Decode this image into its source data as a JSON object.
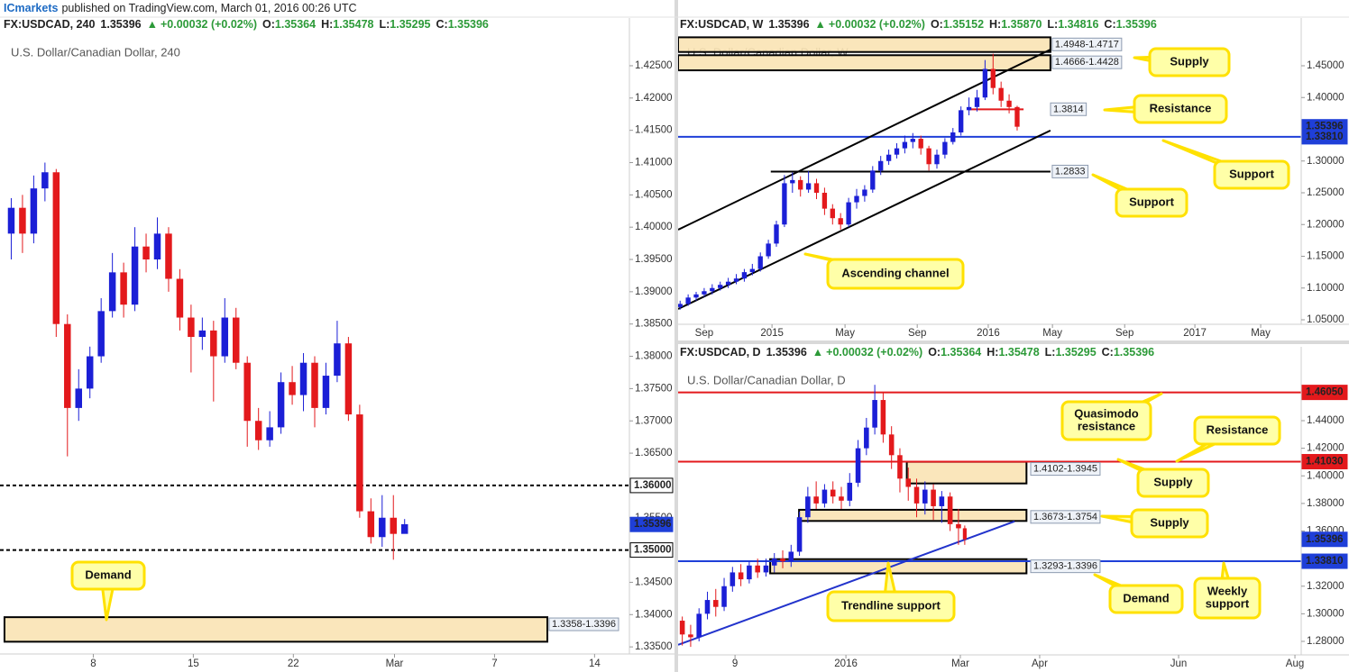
{
  "page": {
    "publisher": "ICmarkets",
    "note": "published on TradingView.com, March 01, 2016 00:26 UTC"
  },
  "chart_data": [
    {
      "type": "candlestick",
      "title": "U.S. Dollar/Canadian Dollar, 240",
      "header": {
        "symbol": "FX:USDCAD, 240",
        "last": "1.35396",
        "arrow": "▲",
        "change": "+0.00032 (+0.02%)",
        "ohlc": [
          {
            "label": "O:",
            "value": "1.35364"
          },
          {
            "label": "H:",
            "value": "1.35478"
          },
          {
            "label": "L:",
            "value": "1.35295"
          },
          {
            "label": "C:",
            "value": "1.35396"
          }
        ]
      },
      "up_color": "#1b1fd6",
      "down_color": "#e3191c",
      "xlim": [
        0,
        56
      ],
      "ylim": [
        1.3339,
        1.4296
      ],
      "xticks": [
        {
          "value": 8.3,
          "label": "8"
        },
        {
          "value": 17.2,
          "label": "15"
        },
        {
          "value": 26.1,
          "label": "22"
        },
        {
          "value": 35.1,
          "label": "Mar"
        },
        {
          "value": 44,
          "label": "7"
        },
        {
          "value": 52.9,
          "label": "14"
        }
      ],
      "yticks": [
        {
          "value": 1.335,
          "label": "1.33500"
        },
        {
          "value": 1.34,
          "label": "1.34000"
        },
        {
          "value": 1.345,
          "label": "1.34500"
        },
        {
          "value": 1.355,
          "label": "1.35500"
        },
        {
          "value": 1.365,
          "label": "1.36500"
        },
        {
          "value": 1.37,
          "label": "1.37000"
        },
        {
          "value": 1.375,
          "label": "1.37500"
        },
        {
          "value": 1.38,
          "label": "1.38000"
        },
        {
          "value": 1.385,
          "label": "1.38500"
        },
        {
          "value": 1.39,
          "label": "1.39000"
        },
        {
          "value": 1.395,
          "label": "1.39500"
        },
        {
          "value": 1.4,
          "label": "1.40000"
        },
        {
          "value": 1.405,
          "label": "1.40500"
        },
        {
          "value": 1.41,
          "label": "1.41000"
        },
        {
          "value": 1.415,
          "label": "1.41500"
        },
        {
          "value": 1.42,
          "label": "1.42000"
        },
        {
          "value": 1.425,
          "label": "1.42500"
        }
      ],
      "x": [
        1,
        2,
        3,
        4,
        5,
        6,
        7,
        8,
        9,
        10,
        11,
        12,
        13,
        14,
        15,
        16,
        17,
        18,
        19,
        20,
        21,
        22,
        23,
        24,
        25,
        26,
        27,
        28,
        29,
        30,
        31,
        32,
        33,
        34,
        35,
        36
      ],
      "open": [
        1.399,
        1.403,
        1.399,
        1.406,
        1.4085,
        1.385,
        1.372,
        1.375,
        1.38,
        1.387,
        1.393,
        1.388,
        1.397,
        1.395,
        1.399,
        1.392,
        1.386,
        1.383,
        1.384,
        1.38,
        1.386,
        1.379,
        1.37,
        1.367,
        1.369,
        1.376,
        1.374,
        1.379,
        1.372,
        1.377,
        1.382,
        1.371,
        1.356,
        1.352,
        1.355,
        1.3525
      ],
      "high": [
        1.4045,
        1.405,
        1.408,
        1.41,
        1.409,
        1.3865,
        1.378,
        1.3815,
        1.389,
        1.396,
        1.3945,
        1.4,
        1.399,
        1.4015,
        1.4,
        1.3935,
        1.388,
        1.386,
        1.3855,
        1.389,
        1.3875,
        1.38,
        1.372,
        1.3715,
        1.3775,
        1.3785,
        1.3805,
        1.38,
        1.379,
        1.3855,
        1.383,
        1.3725,
        1.358,
        1.3585,
        1.3585,
        1.3548
      ],
      "low": [
        1.395,
        1.396,
        1.3975,
        1.404,
        1.383,
        1.3645,
        1.37,
        1.3735,
        1.379,
        1.386,
        1.386,
        1.387,
        1.393,
        1.3935,
        1.39,
        1.384,
        1.3775,
        1.381,
        1.373,
        1.379,
        1.378,
        1.366,
        1.3655,
        1.366,
        1.368,
        1.3725,
        1.3715,
        1.369,
        1.371,
        1.376,
        1.37,
        1.355,
        1.351,
        1.3505,
        1.3485,
        1.353
      ],
      "close": [
        1.403,
        1.399,
        1.406,
        1.4085,
        1.385,
        1.372,
        1.375,
        1.38,
        1.387,
        1.393,
        1.388,
        1.397,
        1.395,
        1.399,
        1.392,
        1.386,
        1.383,
        1.384,
        1.38,
        1.386,
        1.379,
        1.37,
        1.367,
        1.369,
        1.376,
        1.374,
        1.379,
        1.372,
        1.377,
        1.382,
        1.371,
        1.356,
        1.352,
        1.355,
        1.3525,
        1.354
      ],
      "levels": [
        {
          "value": 1.36,
          "label": "1.36000",
          "color": "#000000",
          "style": "dashed"
        },
        {
          "value": 1.35,
          "label": "1.35000",
          "color": "#000000",
          "style": "dashed"
        },
        {
          "value": 1.35396,
          "label": "1.35396",
          "color": "#1f3fd8",
          "style": "none"
        }
      ],
      "zones": [
        {
          "low": 1.3358,
          "high": 1.3396,
          "from": 0.4,
          "to": 48.7,
          "label": "1.3358-1.3396"
        }
      ],
      "segments": [],
      "callouts": [
        {
          "lines": [
            "Demand"
          ]
        }
      ]
    },
    {
      "type": "candlestick",
      "title": "U.S. Dollar/Canadian Dollar, W",
      "header": {
        "symbol": "FX:USDCAD, W",
        "last": "1.35396",
        "arrow": "▲",
        "change": "+0.00032 (+0.02%)",
        "ohlc": [
          {
            "label": "O:",
            "value": "1.35152"
          },
          {
            "label": "H:",
            "value": "1.35870"
          },
          {
            "label": "L:",
            "value": "1.34816"
          },
          {
            "label": "C:",
            "value": "1.35396"
          }
        ]
      },
      "up_color": "#1b1fd6",
      "down_color": "#e3191c",
      "xlim": [
        -0.5,
        154.8
      ],
      "ylim": [
        1.0429,
        1.4968
      ],
      "xticks": [
        {
          "value": 6,
          "label": "Sep"
        },
        {
          "value": 22.9,
          "label": "2015"
        },
        {
          "value": 41.1,
          "label": "May"
        },
        {
          "value": 59.1,
          "label": "Sep"
        },
        {
          "value": 76.8,
          "label": "2016"
        },
        {
          "value": 92.8,
          "label": "May"
        },
        {
          "value": 110.8,
          "label": "Sep"
        },
        {
          "value": 128.3,
          "label": "2017"
        },
        {
          "value": 144.7,
          "label": "May"
        }
      ],
      "yticks": [
        {
          "value": 1.05,
          "label": "1.05000"
        },
        {
          "value": 1.1,
          "label": "1.10000"
        },
        {
          "value": 1.15,
          "label": "1.15000"
        },
        {
          "value": 1.2,
          "label": "1.20000"
        },
        {
          "value": 1.25,
          "label": "1.25000"
        },
        {
          "value": 1.3,
          "label": "1.30000"
        },
        {
          "value": 1.4,
          "label": "1.40000"
        },
        {
          "value": 1.45,
          "label": "1.45000"
        }
      ],
      "x": [
        0,
        2,
        4,
        6,
        8,
        10,
        12,
        14,
        16,
        18,
        20,
        22,
        24,
        26,
        28,
        30,
        32,
        34,
        36,
        38,
        40,
        42,
        44,
        46,
        48,
        50,
        52,
        54,
        56,
        58,
        60,
        62,
        64,
        66,
        68,
        70,
        72,
        74,
        76,
        78,
        80,
        82,
        84
      ],
      "open": [
        1.07,
        1.075,
        1.085,
        1.09,
        1.095,
        1.1,
        1.105,
        1.11,
        1.115,
        1.125,
        1.13,
        1.15,
        1.17,
        1.2,
        1.265,
        1.27,
        1.255,
        1.265,
        1.25,
        1.225,
        1.21,
        1.2,
        1.235,
        1.245,
        1.255,
        1.285,
        1.3,
        1.31,
        1.32,
        1.33,
        1.335,
        1.32,
        1.295,
        1.31,
        1.33,
        1.345,
        1.38,
        1.385,
        1.4,
        1.445,
        1.415,
        1.395,
        1.385
      ],
      "high": [
        1.08,
        1.09,
        1.094,
        1.1,
        1.106,
        1.11,
        1.116,
        1.122,
        1.13,
        1.138,
        1.156,
        1.176,
        1.206,
        1.278,
        1.282,
        1.276,
        1.284,
        1.272,
        1.258,
        1.232,
        1.218,
        1.242,
        1.256,
        1.262,
        1.292,
        1.308,
        1.318,
        1.328,
        1.34,
        1.344,
        1.34,
        1.324,
        1.318,
        1.336,
        1.352,
        1.386,
        1.4,
        1.412,
        1.459,
        1.469,
        1.425,
        1.405,
        1.387
      ],
      "low": [
        1.066,
        1.072,
        1.08,
        1.086,
        1.09,
        1.096,
        1.1,
        1.106,
        1.11,
        1.12,
        1.126,
        1.146,
        1.165,
        1.196,
        1.25,
        1.244,
        1.25,
        1.24,
        1.215,
        1.2,
        1.192,
        1.196,
        1.225,
        1.236,
        1.25,
        1.278,
        1.294,
        1.304,
        1.312,
        1.32,
        1.31,
        1.285,
        1.288,
        1.304,
        1.326,
        1.34,
        1.372,
        1.378,
        1.396,
        1.405,
        1.385,
        1.375,
        1.348
      ],
      "close": [
        1.075,
        1.085,
        1.09,
        1.095,
        1.1,
        1.105,
        1.11,
        1.115,
        1.125,
        1.13,
        1.15,
        1.17,
        1.2,
        1.265,
        1.27,
        1.255,
        1.265,
        1.25,
        1.225,
        1.21,
        1.2,
        1.235,
        1.245,
        1.255,
        1.285,
        1.3,
        1.31,
        1.32,
        1.33,
        1.335,
        1.32,
        1.295,
        1.31,
        1.33,
        1.345,
        1.38,
        1.385,
        1.4,
        1.445,
        1.415,
        1.395,
        1.385,
        1.354
      ],
      "levels": [
        {
          "value": 1.35396,
          "label": "1.35396",
          "color": "#1f3fd8",
          "style": "none"
        },
        {
          "value": 1.3381,
          "label": "1.33810",
          "color": "#1f3fd8",
          "style": "solid"
        }
      ],
      "zones": [
        {
          "low": 1.4717,
          "high": 1.4948,
          "from": -0.5,
          "to": 92.3,
          "label": "1.4948-1.4717"
        },
        {
          "low": 1.4428,
          "high": 1.4666,
          "from": -0.5,
          "to": 92.3,
          "label": "1.4666-1.4428"
        }
      ],
      "segments": [
        {
          "x": [
            72.1,
            85.6
          ],
          "y": [
            1.3814,
            1.3814
          ],
          "color": "#e3191c",
          "label": "1.3814"
        },
        {
          "x": [
            22.6,
            92.3
          ],
          "y": [
            1.2833,
            1.2833
          ],
          "color": "#000000",
          "label": "1.2833"
        },
        {
          "x": [
            -0.5,
            92.3
          ],
          "y": [
            1.1918,
            1.4755
          ],
          "color": "#000000"
        },
        {
          "x": [
            -0.5,
            92.3
          ],
          "y": [
            1.067,
            1.348
          ],
          "color": "#000000"
        }
      ],
      "callouts": [
        {
          "lines": [
            "Supply"
          ]
        },
        {
          "lines": [
            "Resistance"
          ]
        },
        {
          "lines": [
            "Support"
          ]
        },
        {
          "lines": [
            "Support"
          ]
        },
        {
          "lines": [
            "Ascending channel"
          ]
        }
      ]
    },
    {
      "type": "candlestick",
      "title": "U.S. Dollar/Canadian Dollar, D",
      "header": {
        "symbol": "FX:USDCAD, D",
        "last": "1.35396",
        "arrow": "▲",
        "change": "+0.00032 (+0.02%)",
        "ohlc": [
          {
            "label": "O:",
            "value": "1.35364"
          },
          {
            "label": "H:",
            "value": "1.35478"
          },
          {
            "label": "L:",
            "value": "1.35295"
          },
          {
            "label": "C:",
            "value": "1.35396"
          }
        ]
      },
      "up_color": "#1b1fd6",
      "down_color": "#e3191c",
      "xlim": [
        0,
        297.8
      ],
      "ylim": [
        1.2702,
        1.4805
      ],
      "xticks": [
        {
          "value": 27.2,
          "label": "9"
        },
        {
          "value": 80.2,
          "label": "2016"
        },
        {
          "value": 134.9,
          "label": "Mar"
        },
        {
          "value": 172.8,
          "label": "Apr"
        },
        {
          "value": 239.2,
          "label": "Jun"
        },
        {
          "value": 294.8,
          "label": "Aug"
        }
      ],
      "yticks": [
        {
          "value": 1.28,
          "label": "1.28000"
        },
        {
          "value": 1.3,
          "label": "1.30000"
        },
        {
          "value": 1.32,
          "label": "1.32000"
        },
        {
          "value": 1.36,
          "label": "1.36000"
        },
        {
          "value": 1.38,
          "label": "1.38000"
        },
        {
          "value": 1.4,
          "label": "1.40000"
        },
        {
          "value": 1.42,
          "label": "1.42000"
        },
        {
          "value": 1.44,
          "label": "1.44000"
        }
      ],
      "x": [
        2,
        6,
        10,
        14,
        18,
        22,
        26,
        30,
        34,
        38,
        42,
        46,
        50,
        54,
        58,
        62,
        66,
        70,
        74,
        78,
        82,
        86,
        90,
        94,
        98,
        102,
        106,
        110,
        114,
        118,
        122,
        126,
        130,
        134,
        137
      ],
      "open": [
        1.295,
        1.285,
        1.283,
        1.3,
        1.31,
        1.305,
        1.32,
        1.33,
        1.325,
        1.335,
        1.33,
        1.335,
        1.34,
        1.338,
        1.345,
        1.37,
        1.385,
        1.38,
        1.39,
        1.385,
        1.382,
        1.395,
        1.42,
        1.435,
        1.455,
        1.43,
        1.415,
        1.398,
        1.392,
        1.38,
        1.39,
        1.378,
        1.385,
        1.365,
        1.362
      ],
      "high": [
        1.298,
        1.292,
        1.304,
        1.316,
        1.318,
        1.326,
        1.334,
        1.336,
        1.338,
        1.34,
        1.34,
        1.344,
        1.346,
        1.35,
        1.374,
        1.392,
        1.396,
        1.394,
        1.396,
        1.392,
        1.402,
        1.426,
        1.442,
        1.466,
        1.46,
        1.436,
        1.42,
        1.406,
        1.398,
        1.396,
        1.394,
        1.389,
        1.388,
        1.376,
        1.364
      ],
      "low": [
        1.277,
        1.276,
        1.28,
        1.296,
        1.298,
        1.302,
        1.316,
        1.32,
        1.322,
        1.326,
        1.327,
        1.33,
        1.333,
        1.334,
        1.342,
        1.366,
        1.376,
        1.377,
        1.38,
        1.376,
        1.378,
        1.392,
        1.415,
        1.43,
        1.424,
        1.405,
        1.388,
        1.382,
        1.37,
        1.372,
        1.368,
        1.366,
        1.36,
        1.35,
        1.35
      ],
      "close": [
        1.285,
        1.283,
        1.3,
        1.31,
        1.305,
        1.32,
        1.33,
        1.325,
        1.335,
        1.33,
        1.335,
        1.34,
        1.338,
        1.345,
        1.37,
        1.385,
        1.38,
        1.39,
        1.385,
        1.382,
        1.395,
        1.42,
        1.435,
        1.455,
        1.43,
        1.415,
        1.398,
        1.392,
        1.38,
        1.39,
        1.378,
        1.385,
        1.365,
        1.362,
        1.354
      ],
      "levels": [
        {
          "value": 1.4605,
          "label": "1.46050",
          "color": "#e3191c",
          "style": "solid"
        },
        {
          "value": 1.4103,
          "label": "1.41030",
          "color": "#e3191c",
          "style": "solid"
        },
        {
          "value": 1.35396,
          "label": "1.35396",
          "color": "#1f3fd8",
          "style": "none"
        },
        {
          "value": 1.3381,
          "label": "1.33810",
          "color": "#1f3fd8",
          "style": "solid"
        }
      ],
      "zones": [
        {
          "low": 1.3945,
          "high": 1.4102,
          "from": 109.3,
          "to": 166.5,
          "label": "1.4102-1.3945"
        },
        {
          "low": 1.3673,
          "high": 1.3754,
          "from": 57.8,
          "to": 166.5,
          "label": "1.3673-1.3754"
        },
        {
          "low": 1.3293,
          "high": 1.3396,
          "from": 44,
          "to": 166.5,
          "label": "1.3293-1.3396"
        }
      ],
      "segments": [
        {
          "x": [
            0,
            160.8
          ],
          "y": [
            1.2775,
            1.367
          ],
          "color": "#2233cc"
        }
      ],
      "callouts": [
        {
          "lines": [
            "Quasimodo",
            "resistance"
          ]
        },
        {
          "lines": [
            "Resistance"
          ]
        },
        {
          "lines": [
            "Supply"
          ]
        },
        {
          "lines": [
            "Supply"
          ]
        },
        {
          "lines": [
            "Trendline support"
          ]
        },
        {
          "lines": [
            "Demand"
          ]
        },
        {
          "lines": [
            "Weekly",
            "support"
          ]
        }
      ]
    }
  ]
}
